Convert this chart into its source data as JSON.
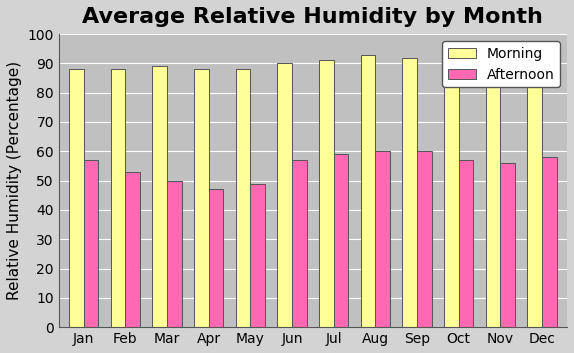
{
  "title": "Average Relative Humidity by Month",
  "ylabel": "Relative Humidity (Percentage)",
  "months": [
    "Jan",
    "Feb",
    "Mar",
    "Apr",
    "May",
    "Jun",
    "Jul",
    "Aug",
    "Sep",
    "Oct",
    "Nov",
    "Dec"
  ],
  "morning": [
    88,
    88,
    89,
    88,
    88,
    90,
    91,
    93,
    92,
    90,
    90,
    89
  ],
  "afternoon": [
    57,
    53,
    50,
    47,
    49,
    57,
    59,
    60,
    60,
    57,
    56,
    58
  ],
  "morning_color": "#FFFF99",
  "afternoon_color": "#FF69B4",
  "bar_edge_color": "#555555",
  "background_color": "#C0C0C0",
  "figure_bg_color": "#D3D3D3",
  "ylim": [
    0,
    100
  ],
  "yticks": [
    0,
    10,
    20,
    30,
    40,
    50,
    60,
    70,
    80,
    90,
    100
  ],
  "legend_labels": [
    "Morning",
    "Afternoon"
  ],
  "title_fontsize": 16,
  "axis_fontsize": 11,
  "tick_fontsize": 10,
  "bar_width": 0.35
}
